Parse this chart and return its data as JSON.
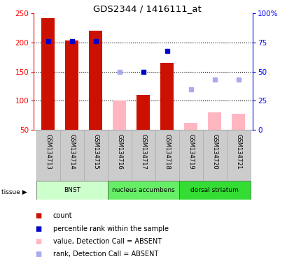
{
  "title": "GDS2344 / 1416111_at",
  "samples": [
    "GSM134713",
    "GSM134714",
    "GSM134715",
    "GSM134716",
    "GSM134717",
    "GSM134718",
    "GSM134719",
    "GSM134720",
    "GSM134721"
  ],
  "count_present": [
    242,
    204,
    220,
    null,
    110,
    165,
    null,
    null,
    null
  ],
  "count_absent": [
    null,
    null,
    null,
    100,
    null,
    null,
    62,
    80,
    78
  ],
  "rank_present_pct": [
    76,
    76,
    76,
    null,
    50,
    68,
    null,
    null,
    null
  ],
  "rank_absent_pct": [
    null,
    null,
    null,
    50,
    null,
    null,
    35,
    43,
    43
  ],
  "tissues": [
    {
      "label": "BNST",
      "start": 0,
      "end": 3,
      "color": "#ccffcc"
    },
    {
      "label": "nucleus accumbens",
      "start": 3,
      "end": 6,
      "color": "#66ee66"
    },
    {
      "label": "dorsal striatum",
      "start": 6,
      "end": 9,
      "color": "#44ee44"
    }
  ],
  "ylim_left": [
    50,
    250
  ],
  "ylim_right": [
    0,
    100
  ],
  "yticks_left": [
    50,
    100,
    150,
    200,
    250
  ],
  "yticks_right": [
    0,
    25,
    50,
    75,
    100
  ],
  "color_count_present": "#cc1100",
  "color_count_absent": "#ffb6c1",
  "color_rank_present": "#0000cc",
  "color_rank_absent": "#aaaaee",
  "bar_width": 0.55,
  "legend_items": [
    {
      "color": "#cc1100",
      "label": "count"
    },
    {
      "color": "#0000cc",
      "label": "percentile rank within the sample"
    },
    {
      "color": "#ffb6c1",
      "label": "value, Detection Call = ABSENT"
    },
    {
      "color": "#aaaaee",
      "label": "rank, Detection Call = ABSENT"
    }
  ]
}
